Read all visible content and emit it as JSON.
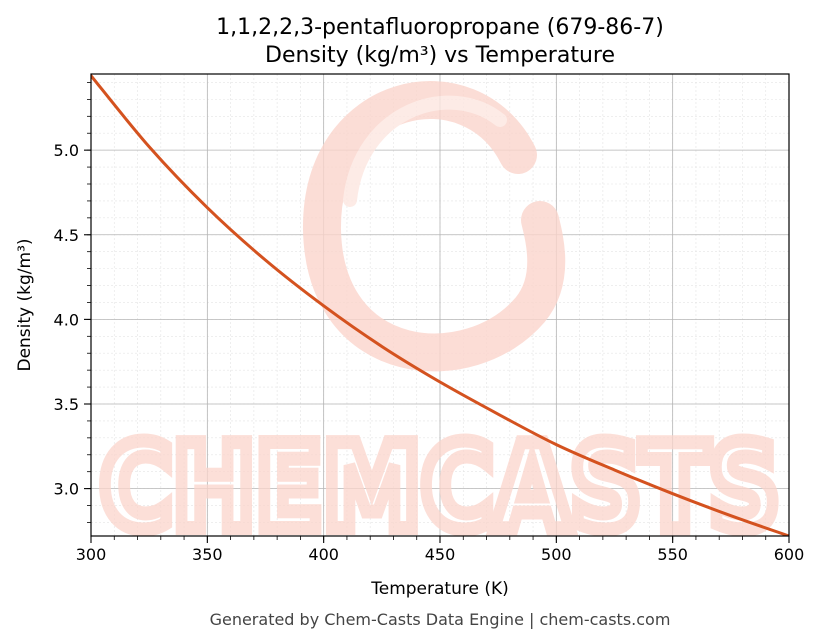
{
  "chart_data": {
    "type": "line",
    "title": "1,1,2,2,3-pentafluoropropane (679-86-7)",
    "subtitle": "Density (kg/m³) vs Temperature",
    "xlabel": "Temperature (K)",
    "ylabel": "Density (kg/m³)",
    "xlim": [
      300,
      600
    ],
    "ylim": [
      2.72,
      5.45
    ],
    "x_ticks": [
      300,
      350,
      400,
      450,
      500,
      550,
      600
    ],
    "y_ticks": [
      3.0,
      3.5,
      4.0,
      4.5,
      5.0
    ],
    "x_tick_labels": [
      "300",
      "350",
      "400",
      "450",
      "500",
      "550",
      "600"
    ],
    "y_tick_labels": [
      "3.0",
      "3.5",
      "4.0",
      "4.5",
      "5.0"
    ],
    "grid": true,
    "series": [
      {
        "color": "#d4521f",
        "x": [
          300,
          325,
          350,
          375,
          400,
          425,
          450,
          475,
          500,
          525,
          550,
          575,
          600
        ],
        "y": [
          5.44,
          5.02,
          4.66,
          4.35,
          4.08,
          3.84,
          3.63,
          3.44,
          3.26,
          3.11,
          2.97,
          2.84,
          2.72
        ]
      }
    ]
  },
  "watermark": {
    "text": "CHEMCASTS",
    "color": "#fbd5cc"
  },
  "footer": "Generated by Chem-Casts Data Engine | chem-casts.com"
}
